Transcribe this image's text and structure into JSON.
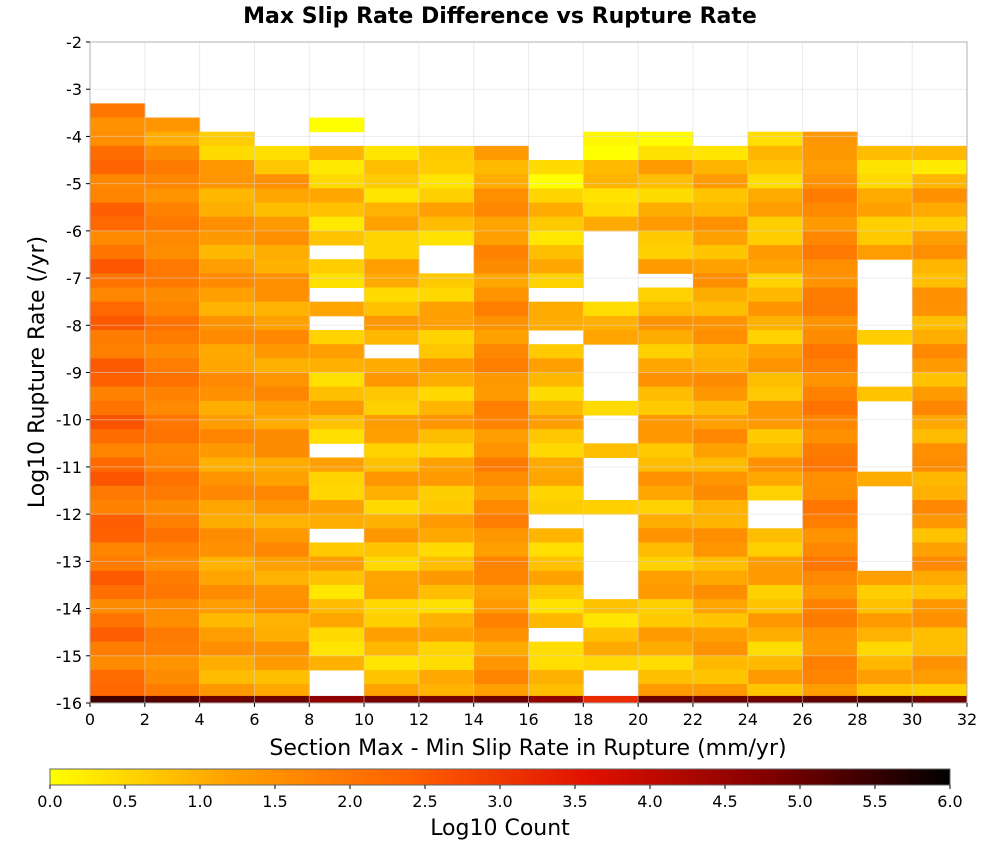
{
  "chart_data": {
    "type": "heatmap",
    "title": "Max Slip Rate Difference vs Rupture Rate",
    "xlabel": "Section Max - Min Slip Rate in Rupture (mm/yr)",
    "ylabel": "Log10 Rupture Rate (/yr)",
    "xlim": [
      0,
      32
    ],
    "ylim": [
      -16,
      -2
    ],
    "x_ticks": [
      "0",
      "2",
      "4",
      "6",
      "8",
      "10",
      "12",
      "14",
      "16",
      "18",
      "20",
      "22",
      "24",
      "26",
      "28",
      "30",
      "32"
    ],
    "y_ticks": [
      "-2",
      "-3",
      "-4",
      "-5",
      "-6",
      "-7",
      "-8",
      "-9",
      "-10",
      "-11",
      "-12",
      "-13",
      "-14",
      "-15",
      "-16"
    ],
    "x_bin_width": 2,
    "y_bin_width": 0.3,
    "grid": true,
    "colorbar": {
      "label": "Log10 Count",
      "range": [
        0,
        6
      ],
      "ticks": [
        "0.0",
        "0.5",
        "1.0",
        "1.5",
        "2.0",
        "2.5",
        "3.0",
        "3.5",
        "4.0",
        "4.5",
        "5.0",
        "5.5",
        "6.0"
      ],
      "colors": [
        "#ffff00",
        "#ffa000",
        "#ff6000",
        "#e01000",
        "#800000",
        "#000000"
      ]
    },
    "columns": [
      {
        "x": 0,
        "top": -3.3,
        "empty": [],
        "base": 1.9,
        "var": 0.45
      },
      {
        "x": 2,
        "top": -3.6,
        "empty": [],
        "base": 1.6,
        "var": 0.25
      },
      {
        "x": 4,
        "top": -3.9,
        "empty": [],
        "base": 1.1,
        "var": 0.35
      },
      {
        "x": 6,
        "top": -4.2,
        "empty": [],
        "base": 1.1,
        "var": 0.35
      },
      {
        "x": 8,
        "top": -3.6,
        "empty": [
          -3.9,
          -6.3,
          -7.2,
          -7.8,
          -10.5,
          -12.3,
          -15.3,
          -15.6
        ],
        "base": 0.6,
        "var": 0.45
      },
      {
        "x": 10,
        "top": -4.2,
        "empty": [
          -8.4
        ],
        "base": 0.7,
        "var": 0.45
      },
      {
        "x": 12,
        "top": -4.2,
        "empty": [
          -6.3,
          -6.6
        ],
        "base": 0.7,
        "var": 0.45
      },
      {
        "x": 14,
        "top": -4.2,
        "empty": [],
        "base": 1.3,
        "var": 0.35
      },
      {
        "x": 16,
        "top": -4.5,
        "empty": [
          -7.2,
          -8.1,
          -12.0,
          -14.4
        ],
        "base": 0.6,
        "var": 0.4
      },
      {
        "x": 18,
        "top": -3.9,
        "empty": [
          -6.0,
          -6.3,
          -6.6,
          -6.9,
          -7.2,
          -8.4,
          -8.7,
          -9.0,
          -9.3,
          -9.9,
          -10.2,
          -10.8,
          -11.1,
          -11.4,
          -12.0,
          -12.3,
          -12.6,
          -12.9,
          -13.2,
          -13.5,
          -15.3,
          -15.6
        ],
        "base": 0.6,
        "var": 0.4
      },
      {
        "x": 20,
        "top": -3.9,
        "empty": [
          -6.9
        ],
        "base": 0.8,
        "var": 0.45
      },
      {
        "x": 22,
        "top": -4.2,
        "empty": [],
        "base": 1.0,
        "var": 0.4
      },
      {
        "x": 24,
        "top": -3.9,
        "empty": [
          -11.7,
          -12.0
        ],
        "base": 0.8,
        "var": 0.45
      },
      {
        "x": 26,
        "top": -3.9,
        "empty": [],
        "base": 1.5,
        "var": 0.3
      },
      {
        "x": 28,
        "top": -4.2,
        "empty": [
          -6.6,
          -6.9,
          -7.2,
          -7.5,
          -7.8,
          -8.4,
          -8.7,
          -9.0,
          -9.6,
          -9.9,
          -10.2,
          -10.5,
          -10.8,
          -11.4,
          -11.7,
          -12.0,
          -12.3,
          -12.6,
          -12.9
        ],
        "base": 0.8,
        "var": 0.4
      },
      {
        "x": 30,
        "top": -4.2,
        "empty": [],
        "base": 1.0,
        "var": 0.45
      }
    ],
    "bottom_row": {
      "y": -16.0,
      "values": [
        5.4,
        5.2,
        5.0,
        5.0,
        4.6,
        4.9,
        4.9,
        5.0,
        4.6,
        3.2,
        5.0,
        5.0,
        5.0,
        5.1,
        5.3,
        5.0
      ]
    }
  }
}
